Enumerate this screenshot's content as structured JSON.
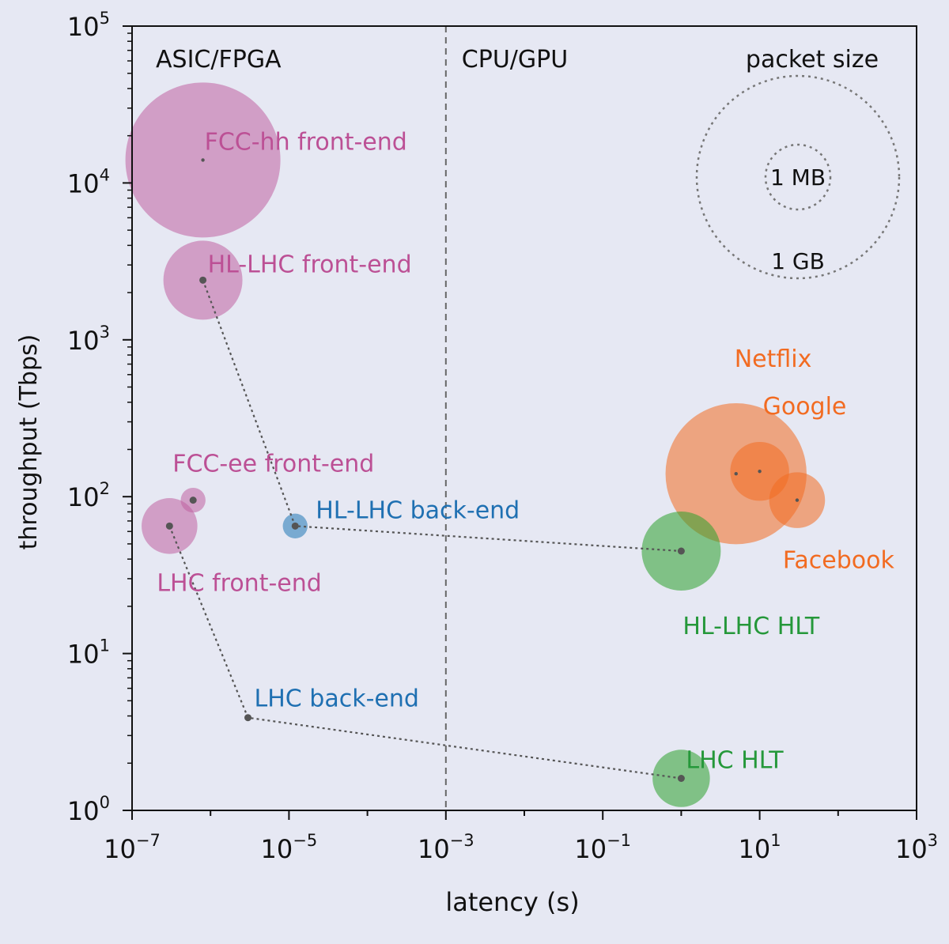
{
  "chart_data": {
    "type": "scatter",
    "title": "",
    "xlabel": "latency (s)",
    "ylabel": "throughput (Tbps)",
    "xscale": "log",
    "yscale": "log",
    "xlim": [
      1e-07,
      1000
    ],
    "ylim": [
      1,
      100000
    ],
    "x_ticks": [
      {
        "value": 1e-07,
        "base": "10",
        "exp": "−7"
      },
      {
        "value": 1e-05,
        "base": "10",
        "exp": "−5"
      },
      {
        "value": 0.001,
        "base": "10",
        "exp": "−3"
      },
      {
        "value": 0.1,
        "base": "10",
        "exp": "−1"
      },
      {
        "value": 10,
        "base": "10",
        "exp": "1"
      },
      {
        "value": 1000,
        "base": "10",
        "exp": "3"
      }
    ],
    "y_ticks": [
      {
        "value": 1,
        "base": "10",
        "exp": "0"
      },
      {
        "value": 10,
        "base": "10",
        "exp": "1"
      },
      {
        "value": 100,
        "base": "10",
        "exp": "2"
      },
      {
        "value": 1000,
        "base": "10",
        "exp": "3"
      },
      {
        "value": 10000,
        "base": "10",
        "exp": "4"
      },
      {
        "value": 100000,
        "base": "10",
        "exp": "5"
      }
    ],
    "divider": {
      "x": 0.001,
      "left_label": "ASIC/FPGA",
      "right_label": "CPU/GPU"
    },
    "size_legend": {
      "title": "packet size",
      "entries": [
        {
          "label": "1 MB",
          "radius_scale": 0.24
        },
        {
          "label": "1 GB",
          "radius_scale": 1.0
        }
      ]
    },
    "colors": {
      "front_end": "#c060a1",
      "back_end": "#1f77b4",
      "hlt": "#2ca02c",
      "industry": "#f26b21",
      "marker": "#555555"
    },
    "series": [
      {
        "name": "FCC-hh front-end",
        "group": "front_end",
        "x": 8e-07,
        "y": 14000,
        "size_scale": 1.0
      },
      {
        "name": "HL-LHC front-end",
        "group": "front_end",
        "x": 8e-07,
        "y": 2400,
        "size_scale": 0.51
      },
      {
        "name": "FCC-ee front-end",
        "group": "front_end",
        "x": 6e-07,
        "y": 95,
        "size_scale": 0.16
      },
      {
        "name": "LHC front-end",
        "group": "front_end",
        "x": 3e-07,
        "y": 65,
        "size_scale": 0.36
      },
      {
        "name": "HL-LHC back-end",
        "group": "back_end",
        "x": 1.2e-05,
        "y": 65,
        "size_scale": 0.16
      },
      {
        "name": "LHC back-end",
        "group": "back_end",
        "x": 3e-06,
        "y": 3.9,
        "size_scale": 0
      },
      {
        "name": "Netflix",
        "group": "industry",
        "x": 5,
        "y": 140,
        "size_scale": 0.91
      },
      {
        "name": "Google",
        "group": "industry",
        "x": 10,
        "y": 145,
        "size_scale": 0.38
      },
      {
        "name": "Facebook",
        "group": "industry",
        "x": 30,
        "y": 95,
        "size_scale": 0.36
      },
      {
        "name": "HL-LHC HLT",
        "group": "hlt",
        "x": 1,
        "y": 45,
        "size_scale": 0.51
      },
      {
        "name": "LHC HLT",
        "group": "hlt",
        "x": 1,
        "y": 1.6,
        "size_scale": 0.37
      }
    ],
    "connections": [
      {
        "points": [
          "HL-LHC front-end",
          "HL-LHC back-end",
          "HL-LHC HLT"
        ]
      },
      {
        "points": [
          "LHC front-end",
          "LHC back-end",
          "LHC HLT"
        ]
      }
    ]
  }
}
